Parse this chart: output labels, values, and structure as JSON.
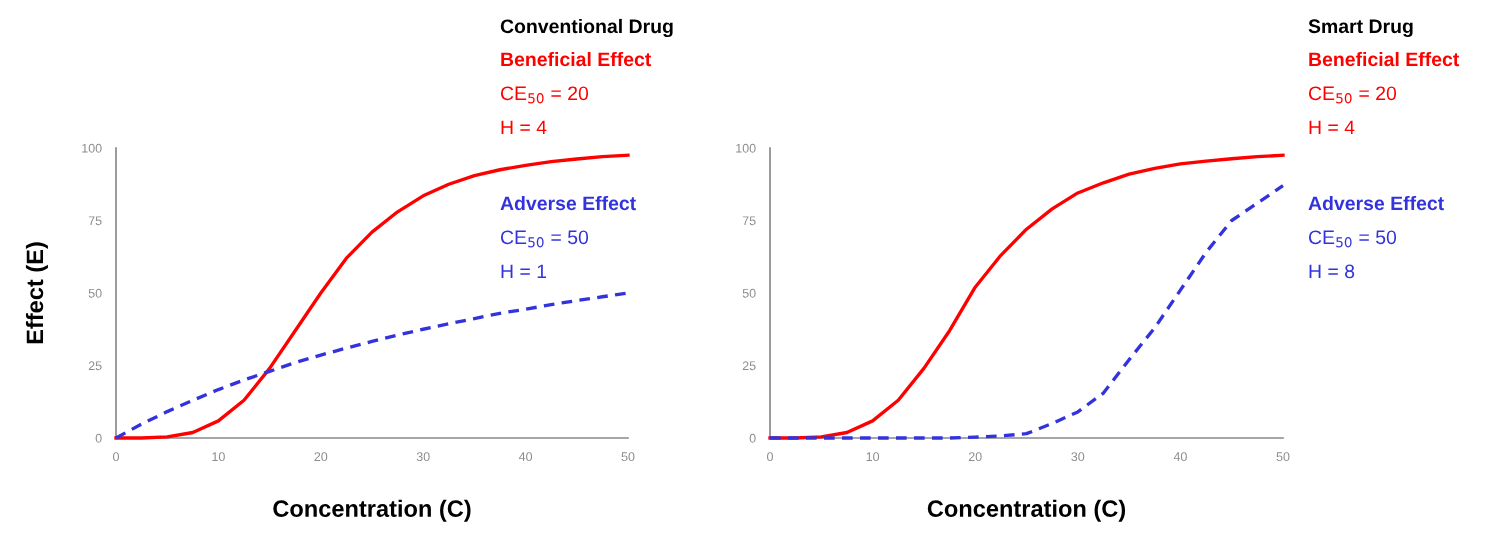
{
  "chart_data": [
    {
      "type": "line",
      "xlabel": "Concentration (C)",
      "ylabel": "Effect (E)",
      "x": [
        0,
        2.5,
        5,
        7.5,
        10,
        12.5,
        15,
        17.5,
        20,
        22.5,
        25,
        27.5,
        30,
        32.5,
        35,
        37.5,
        40,
        42.5,
        45,
        47.5,
        50
      ],
      "series": [
        {
          "name": "Beneficial Effect",
          "color": "#ff0000",
          "line_style": "solid",
          "values": [
            0,
            0,
            0.4,
            1.9,
            5.9,
            13,
            24,
            37,
            50,
            62,
            71,
            78,
            83.5,
            87.5,
            90.5,
            92.5,
            94,
            95.3,
            96.2,
            97,
            97.5
          ]
        },
        {
          "name": "Adverse Effect",
          "color": "#3333dd",
          "line_style": "dashed",
          "values": [
            0,
            4.8,
            9.1,
            13,
            16.7,
            20,
            23,
            26,
            28.6,
            31,
            33.3,
            35.5,
            37.5,
            39.4,
            41.2,
            43,
            44.4,
            46,
            47.4,
            48.7,
            50
          ]
        }
      ],
      "annotations": [
        "Conventional Drug",
        "CE$_{50}$ = 20",
        "H = 4",
        "CE$_{50}$ = 50",
        "H = 1"
      ],
      "xlim": [
        0,
        50
      ],
      "xticks": [
        0,
        10,
        20,
        30,
        40,
        50
      ],
      "ylim": [
        0,
        100
      ],
      "yticks": [
        0,
        25,
        50,
        75,
        100
      ],
      "grid": false
    },
    {
      "type": "line",
      "xlabel": "Concentration (C)",
      "x": [
        0,
        2.5,
        5,
        7.5,
        10,
        12.5,
        15,
        17.5,
        20,
        22.5,
        25,
        27.5,
        30,
        32.5,
        35,
        37.5,
        40,
        42.5,
        45,
        47.5,
        50
      ],
      "series": [
        {
          "name": "Beneficial Effect",
          "color": "#ff0000",
          "line_style": "solid",
          "values": [
            0,
            0,
            0.4,
            1.9,
            5.9,
            13,
            24,
            37,
            52,
            63,
            72,
            79,
            84.5,
            88,
            91,
            93,
            94.5,
            95.5,
            96.3,
            97,
            97.5
          ]
        },
        {
          "name": "Adverse Effect",
          "color": "#3333dd",
          "line_style": "dashed",
          "values": [
            0,
            0,
            0,
            0,
            0,
            0,
            0,
            0,
            0.3,
            0.7,
            1.5,
            5,
            9,
            15.5,
            27,
            38,
            51,
            64,
            75,
            81,
            87
          ]
        }
      ],
      "annotations": [
        "Smart Drug",
        "CE$_{50}$ = 20",
        "H = 4",
        "CE$_{50}$ = 50",
        "H = 8"
      ],
      "xlim": [
        0,
        50
      ],
      "xticks": [
        0,
        10,
        20,
        30,
        40,
        50
      ],
      "ylim": [
        0,
        100
      ],
      "yticks": [
        0,
        25,
        50,
        75,
        100
      ],
      "grid": false
    }
  ]
}
